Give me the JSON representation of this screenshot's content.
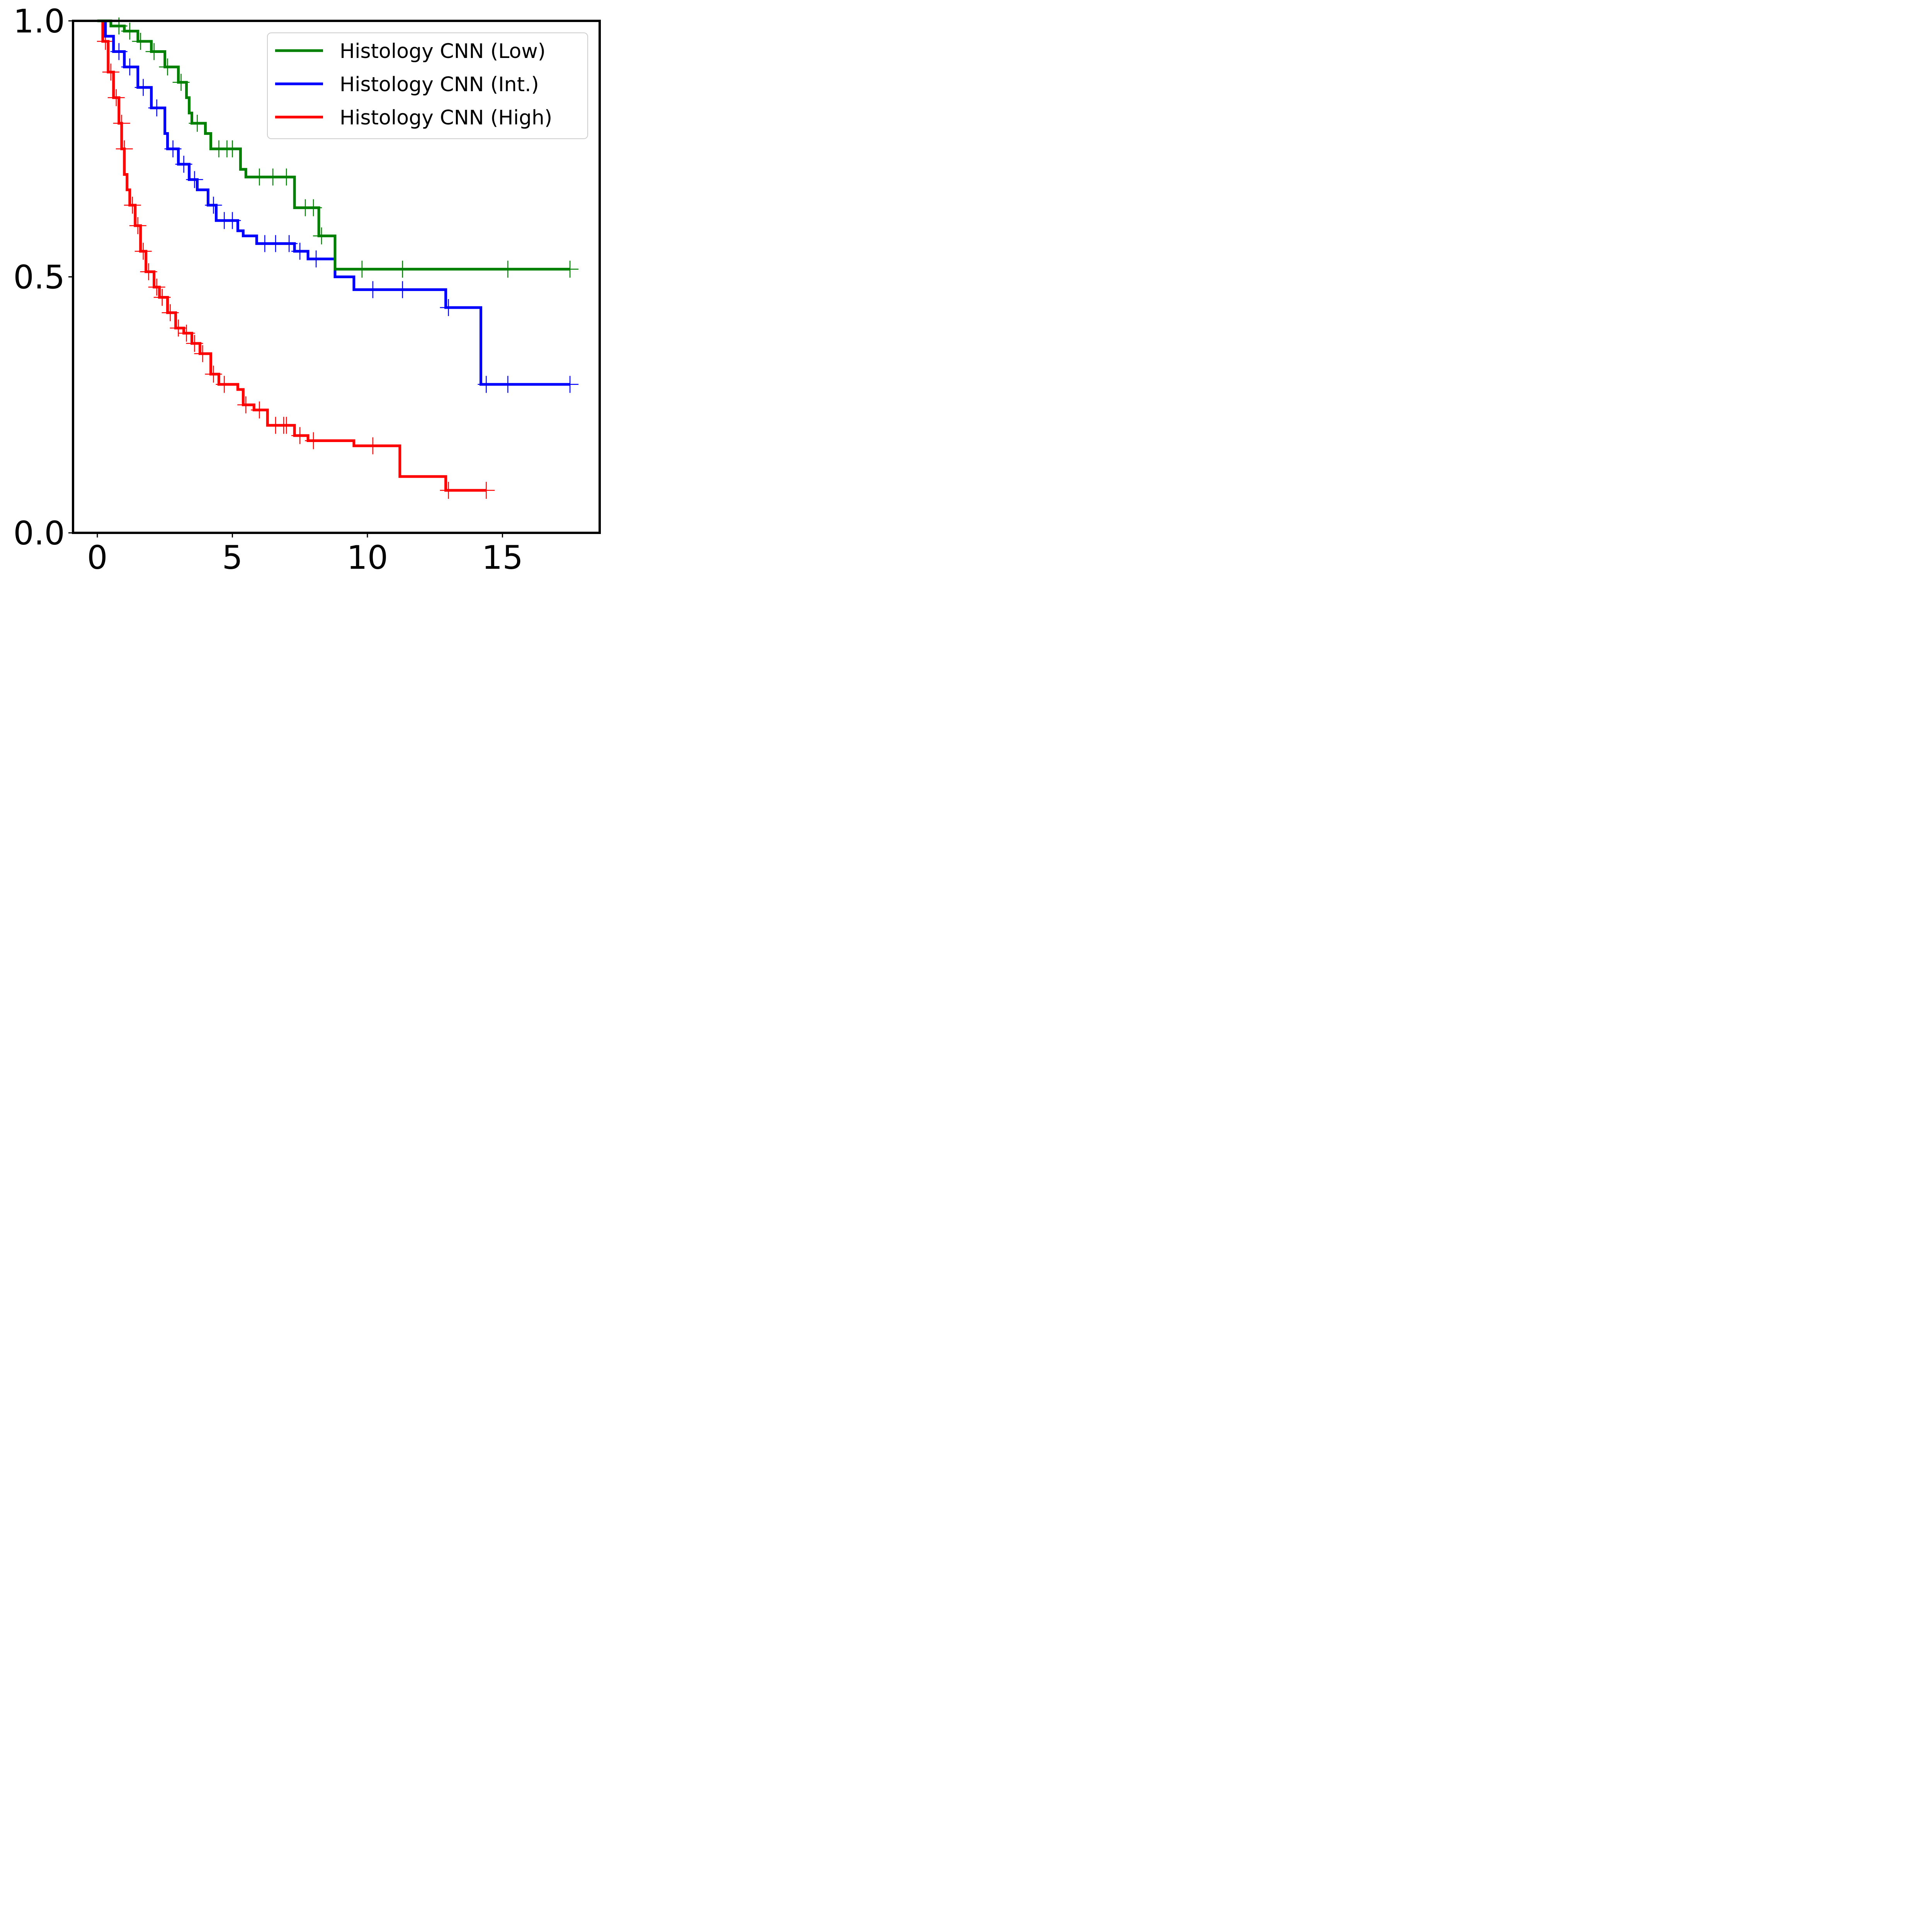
{
  "chart_data": {
    "type": "line",
    "title": "",
    "xlabel": "",
    "ylabel": "",
    "xlim": [
      -0.9,
      18.6
    ],
    "ylim": [
      0,
      1
    ],
    "x_ticks": [
      {
        "value": 0,
        "label": "0"
      },
      {
        "value": 5,
        "label": "5"
      },
      {
        "value": 10,
        "label": "10"
      },
      {
        "value": 15,
        "label": "15"
      }
    ],
    "y_ticks": [
      {
        "value": 0.0,
        "label": "0.0"
      },
      {
        "value": 0.5,
        "label": "0.5"
      },
      {
        "value": 1.0,
        "label": "1.0"
      }
    ],
    "grid": false,
    "legend_position": "top-right",
    "series": [
      {
        "name": "Histology CNN (Low)",
        "color": "#008000",
        "steps": [
          [
            0,
            1.0
          ],
          [
            0.5,
            0.99
          ],
          [
            1.0,
            0.98
          ],
          [
            1.5,
            0.96
          ],
          [
            2.0,
            0.94
          ],
          [
            2.5,
            0.91
          ],
          [
            3.0,
            0.88
          ],
          [
            3.3,
            0.85
          ],
          [
            3.4,
            0.82
          ],
          [
            3.5,
            0.8
          ],
          [
            4.0,
            0.78
          ],
          [
            4.2,
            0.75
          ],
          [
            5.3,
            0.71
          ],
          [
            5.5,
            0.695
          ],
          [
            7.3,
            0.635
          ],
          [
            8.2,
            0.58
          ],
          [
            8.8,
            0.515
          ],
          [
            17.5,
            0.515
          ]
        ],
        "censored": [
          [
            0.8,
            0.99
          ],
          [
            1.2,
            0.98
          ],
          [
            1.6,
            0.96
          ],
          [
            2.1,
            0.94
          ],
          [
            2.6,
            0.91
          ],
          [
            3.1,
            0.88
          ],
          [
            3.7,
            0.8
          ],
          [
            4.5,
            0.75
          ],
          [
            4.8,
            0.75
          ],
          [
            5.0,
            0.75
          ],
          [
            6.0,
            0.695
          ],
          [
            6.5,
            0.695
          ],
          [
            7.0,
            0.695
          ],
          [
            7.7,
            0.635
          ],
          [
            8.0,
            0.635
          ],
          [
            8.3,
            0.58
          ],
          [
            9.8,
            0.515
          ],
          [
            11.3,
            0.515
          ],
          [
            15.2,
            0.515
          ],
          [
            17.5,
            0.515
          ]
        ]
      },
      {
        "name": "Histology CNN (Int.)",
        "color": "#0000ff",
        "steps": [
          [
            0,
            1.0
          ],
          [
            0.3,
            0.97
          ],
          [
            0.6,
            0.94
          ],
          [
            1.0,
            0.91
          ],
          [
            1.5,
            0.87
          ],
          [
            2.0,
            0.83
          ],
          [
            2.5,
            0.78
          ],
          [
            2.6,
            0.75
          ],
          [
            3.0,
            0.72
          ],
          [
            3.4,
            0.69
          ],
          [
            3.7,
            0.67
          ],
          [
            4.1,
            0.64
          ],
          [
            4.4,
            0.61
          ],
          [
            5.2,
            0.59
          ],
          [
            5.4,
            0.58
          ],
          [
            5.9,
            0.565
          ],
          [
            7.3,
            0.55
          ],
          [
            7.8,
            0.535
          ],
          [
            8.8,
            0.5
          ],
          [
            9.5,
            0.475
          ],
          [
            12.9,
            0.44
          ],
          [
            14.2,
            0.29
          ],
          [
            17.5,
            0.29
          ]
        ],
        "censored": [
          [
            0.8,
            0.94
          ],
          [
            1.2,
            0.91
          ],
          [
            1.7,
            0.87
          ],
          [
            2.2,
            0.83
          ],
          [
            2.8,
            0.75
          ],
          [
            3.2,
            0.72
          ],
          [
            3.6,
            0.69
          ],
          [
            4.3,
            0.64
          ],
          [
            4.7,
            0.61
          ],
          [
            5.0,
            0.61
          ],
          [
            6.2,
            0.565
          ],
          [
            6.6,
            0.565
          ],
          [
            7.1,
            0.565
          ],
          [
            7.5,
            0.55
          ],
          [
            8.1,
            0.535
          ],
          [
            10.2,
            0.475
          ],
          [
            11.3,
            0.475
          ],
          [
            13.0,
            0.44
          ],
          [
            14.4,
            0.29
          ],
          [
            15.2,
            0.29
          ],
          [
            17.5,
            0.29
          ]
        ]
      },
      {
        "name": "Histology CNN (High)",
        "color": "#ff0000",
        "steps": [
          [
            0,
            1.0
          ],
          [
            0.2,
            0.96
          ],
          [
            0.4,
            0.9
          ],
          [
            0.6,
            0.85
          ],
          [
            0.8,
            0.8
          ],
          [
            0.9,
            0.75
          ],
          [
            1.0,
            0.7
          ],
          [
            1.1,
            0.67
          ],
          [
            1.2,
            0.64
          ],
          [
            1.4,
            0.6
          ],
          [
            1.6,
            0.55
          ],
          [
            1.8,
            0.51
          ],
          [
            2.1,
            0.48
          ],
          [
            2.3,
            0.46
          ],
          [
            2.6,
            0.43
          ],
          [
            2.9,
            0.4
          ],
          [
            3.2,
            0.39
          ],
          [
            3.5,
            0.37
          ],
          [
            3.8,
            0.35
          ],
          [
            4.2,
            0.31
          ],
          [
            4.5,
            0.29
          ],
          [
            5.2,
            0.28
          ],
          [
            5.4,
            0.25
          ],
          [
            5.8,
            0.24
          ],
          [
            6.3,
            0.21
          ],
          [
            7.3,
            0.19
          ],
          [
            7.8,
            0.18
          ],
          [
            9.5,
            0.17
          ],
          [
            11.2,
            0.11
          ],
          [
            12.9,
            0.083
          ],
          [
            14.4,
            0.083
          ]
        ],
        "censored": [
          [
            0.3,
            0.96
          ],
          [
            0.5,
            0.9
          ],
          [
            0.7,
            0.85
          ],
          [
            0.9,
            0.8
          ],
          [
            1.0,
            0.75
          ],
          [
            1.3,
            0.64
          ],
          [
            1.5,
            0.6
          ],
          [
            1.7,
            0.55
          ],
          [
            1.9,
            0.51
          ],
          [
            2.2,
            0.48
          ],
          [
            2.4,
            0.46
          ],
          [
            2.7,
            0.43
          ],
          [
            3.0,
            0.4
          ],
          [
            3.3,
            0.39
          ],
          [
            3.6,
            0.37
          ],
          [
            3.9,
            0.35
          ],
          [
            4.3,
            0.31
          ],
          [
            4.7,
            0.29
          ],
          [
            5.5,
            0.25
          ],
          [
            6.0,
            0.24
          ],
          [
            6.6,
            0.21
          ],
          [
            6.9,
            0.21
          ],
          [
            7.0,
            0.21
          ],
          [
            7.5,
            0.19
          ],
          [
            8.0,
            0.18
          ],
          [
            10.2,
            0.17
          ],
          [
            13.0,
            0.083
          ],
          [
            14.4,
            0.083
          ]
        ]
      }
    ]
  }
}
